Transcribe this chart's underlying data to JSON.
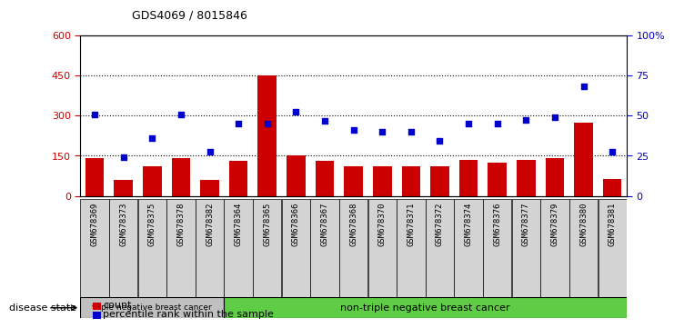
{
  "title": "GDS4069 / 8015846",
  "samples": [
    "GSM678369",
    "GSM678373",
    "GSM678375",
    "GSM678378",
    "GSM678382",
    "GSM678364",
    "GSM678365",
    "GSM678366",
    "GSM678367",
    "GSM678368",
    "GSM678370",
    "GSM678371",
    "GSM678372",
    "GSM678374",
    "GSM678376",
    "GSM678377",
    "GSM678379",
    "GSM678380",
    "GSM678381"
  ],
  "counts": [
    140,
    60,
    110,
    140,
    60,
    130,
    450,
    150,
    130,
    110,
    110,
    110,
    110,
    135,
    125,
    135,
    140,
    275,
    65
  ],
  "percentiles": [
    305,
    145,
    215,
    305,
    165,
    270,
    270,
    315,
    280,
    245,
    240,
    240,
    205,
    270,
    270,
    285,
    295,
    410,
    165
  ],
  "group1_count": 5,
  "group1_label": "triple negative breast cancer",
  "group2_label": "non-triple negative breast cancer",
  "bar_color": "#cc0000",
  "dot_color": "#0000cc",
  "ylim_left": [
    0,
    600
  ],
  "ylim_right": [
    0,
    600
  ],
  "yticks_left": [
    0,
    150,
    300,
    450,
    600
  ],
  "yticks_right_vals": [
    0,
    150,
    300,
    450,
    600
  ],
  "yticks_right_labels": [
    "0",
    "25",
    "50",
    "75",
    "100%"
  ],
  "dotted_line_vals": [
    150,
    300,
    450
  ],
  "legend_count_label": "count",
  "legend_pct_label": "percentile rank within the sample",
  "disease_state_label": "disease state",
  "bg_color_ticks": "#d3d3d3",
  "group1_bg": "#c0c0c0",
  "group2_bg": "#5fcc45"
}
